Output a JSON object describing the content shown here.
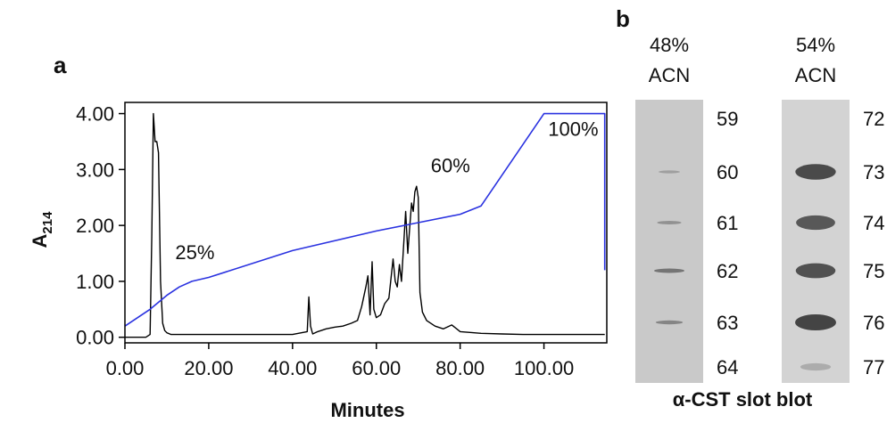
{
  "panel_a": {
    "letter": "a",
    "chart_data": {
      "type": "line",
      "xlabel": "Minutes",
      "ylabel": "A",
      "ylabel_sub": "214",
      "xlim": [
        0,
        115
      ],
      "ylim": [
        0,
        4.0
      ],
      "xticks": [
        {
          "value": 0,
          "label": "0.00"
        },
        {
          "value": 20,
          "label": "20.00"
        },
        {
          "value": 40,
          "label": "40.00"
        },
        {
          "value": 60,
          "label": "60.00"
        },
        {
          "value": 80,
          "label": "80.00"
        },
        {
          "value": 100,
          "label": "100.00"
        }
      ],
      "yticks": [
        {
          "value": 0,
          "label": "0.00"
        },
        {
          "value": 1,
          "label": "1.00"
        },
        {
          "value": 2,
          "label": "2.00"
        },
        {
          "value": 3,
          "label": "3.00"
        },
        {
          "value": 4,
          "label": "4.00"
        }
      ],
      "grid": false,
      "series": [
        {
          "color": "#000000",
          "x": [
            0,
            5,
            6.0,
            6.4,
            6.8,
            7.2,
            7.6,
            8.0,
            8.5,
            9.0,
            9.5,
            10.0,
            11,
            13,
            20,
            30,
            40,
            43.5,
            43.9,
            44.3,
            44.8,
            46,
            48,
            50,
            52,
            54,
            55.5,
            56.5,
            57.5,
            58.0,
            58.5,
            59.0,
            59.4,
            60,
            61,
            62,
            63,
            64.0,
            64.5,
            65.0,
            65.5,
            66,
            67.0,
            67.5,
            68.0,
            68.4,
            68.8,
            69.2,
            69.6,
            70.0,
            70.4,
            71,
            72,
            74,
            76,
            78,
            80,
            85,
            90,
            95,
            100,
            105,
            110,
            114.5
          ],
          "y": [
            0.0,
            0.0,
            0.05,
            1.8,
            4.0,
            3.5,
            3.5,
            3.3,
            1.0,
            0.25,
            0.12,
            0.08,
            0.05,
            0.05,
            0.05,
            0.05,
            0.05,
            0.1,
            0.72,
            0.2,
            0.06,
            0.1,
            0.15,
            0.18,
            0.2,
            0.25,
            0.3,
            0.55,
            0.9,
            1.1,
            0.4,
            1.35,
            0.5,
            0.35,
            0.4,
            0.6,
            0.7,
            1.4,
            1.0,
            0.9,
            1.3,
            1.0,
            2.25,
            1.5,
            2.0,
            2.4,
            2.25,
            2.6,
            2.7,
            2.5,
            0.8,
            0.45,
            0.3,
            0.2,
            0.15,
            0.22,
            0.1,
            0.07,
            0.06,
            0.05,
            0.05,
            0.05,
            0.05,
            0.05
          ]
        },
        {
          "color": "#2a32e0",
          "x": [
            0,
            6,
            10,
            13,
            16,
            20,
            40,
            60,
            70,
            80,
            85,
            100,
            114.5,
            114.5
          ],
          "y": [
            0.2,
            0.5,
            0.75,
            0.9,
            1.0,
            1.07,
            1.55,
            1.9,
            2.05,
            2.2,
            2.35,
            4.0,
            4.0,
            1.2
          ]
        }
      ],
      "annotations": [
        {
          "text": "25%",
          "x": 12,
          "y": 1.4
        },
        {
          "text": "60%",
          "x": 73,
          "y": 2.95
        },
        {
          "text": "100%",
          "x": 101,
          "y": 3.6
        }
      ]
    }
  },
  "panel_b": {
    "letter": "b",
    "caption": "α-CST slot blot",
    "strips": [
      {
        "header_line1": "48%",
        "header_line2": "ACN",
        "lanes": [
          {
            "label": "59",
            "intensity": 0.0
          },
          {
            "label": "60",
            "intensity": 0.08
          },
          {
            "label": "61",
            "intensity": 0.22
          },
          {
            "label": "62",
            "intensity": 0.5
          },
          {
            "label": "63",
            "intensity": 0.35
          },
          {
            "label": "64",
            "intensity": 0.0
          }
        ]
      },
      {
        "header_line1": "54%",
        "header_line2": "ACN",
        "lanes": [
          {
            "label": "72",
            "intensity": 0.0
          },
          {
            "label": "73",
            "intensity": 0.95
          },
          {
            "label": "74",
            "intensity": 0.82
          },
          {
            "label": "75",
            "intensity": 0.88
          },
          {
            "label": "76",
            "intensity": 1.0
          },
          {
            "label": "77",
            "intensity": 0.02
          }
        ]
      }
    ]
  }
}
